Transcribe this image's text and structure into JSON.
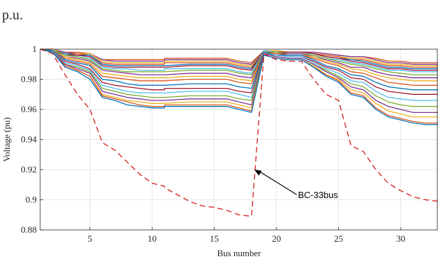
{
  "chart_data": {
    "type": "line",
    "top_text": "p.u.",
    "title": "",
    "xlabel": "Bus number",
    "ylabel": "Voltage (pu)",
    "xlim": [
      1,
      33
    ],
    "ylim": [
      0.88,
      1.0
    ],
    "xticks": [
      5,
      10,
      15,
      20,
      25,
      30
    ],
    "yticks": [
      0.88,
      0.9,
      0.92,
      0.94,
      0.96,
      0.98,
      1.0
    ],
    "ytick_labels": [
      "0.88",
      "0.9",
      "0.92",
      "0.94",
      "0.96",
      "0.98",
      "1"
    ],
    "grid": true,
    "annotation": {
      "text": "BC-33bus",
      "target": [
        18,
        0.92
      ]
    },
    "x": [
      1,
      2,
      3,
      4,
      5,
      6,
      7,
      8,
      9,
      10,
      11,
      11,
      13,
      14,
      15,
      16,
      17,
      18,
      19,
      20,
      21,
      22,
      23,
      24,
      25,
      26,
      27,
      28,
      29,
      30,
      31,
      32,
      33
    ],
    "series": [
      {
        "color": "#d62728",
        "dashed": true,
        "values": [
          1.0,
          0.997,
          0.983,
          0.97,
          0.96,
          0.938,
          0.933,
          0.925,
          0.917,
          0.911,
          0.909,
          0.908,
          0.899,
          0.896,
          0.895,
          0.893,
          0.89,
          0.889,
          0.997,
          0.993,
          0.992,
          0.992,
          0.98,
          0.97,
          0.966,
          0.936,
          0.932,
          0.92,
          0.911,
          0.906,
          0.902,
          0.9,
          0.899
        ]
      },
      {
        "color": "#0072bd",
        "values": [
          1.0,
          0.998,
          0.988,
          0.985,
          0.98,
          0.968,
          0.966,
          0.963,
          0.962,
          0.961,
          0.961,
          0.962,
          0.962,
          0.962,
          0.962,
          0.962,
          0.96,
          0.958,
          0.996,
          0.994,
          0.993,
          0.993,
          0.988,
          0.982,
          0.978,
          0.97,
          0.968,
          0.96,
          0.955,
          0.953,
          0.951,
          0.95,
          0.95
        ]
      },
      {
        "color": "#d95319",
        "values": [
          1.0,
          0.998,
          0.989,
          0.986,
          0.982,
          0.969,
          0.967,
          0.965,
          0.963,
          0.962,
          0.962,
          0.963,
          0.963,
          0.963,
          0.963,
          0.963,
          0.961,
          0.959,
          0.996,
          0.994,
          0.993,
          0.993,
          0.988,
          0.983,
          0.979,
          0.971,
          0.969,
          0.961,
          0.956,
          0.954,
          0.952,
          0.951,
          0.951
        ]
      },
      {
        "color": "#edb120",
        "values": [
          1.0,
          0.998,
          0.989,
          0.986,
          0.982,
          0.97,
          0.968,
          0.966,
          0.965,
          0.964,
          0.964,
          0.964,
          0.965,
          0.965,
          0.965,
          0.965,
          0.963,
          0.961,
          0.996,
          0.994,
          0.993,
          0.993,
          0.989,
          0.983,
          0.98,
          0.973,
          0.971,
          0.964,
          0.959,
          0.957,
          0.955,
          0.955,
          0.955
        ]
      },
      {
        "color": "#7e2f8e",
        "values": [
          1.0,
          0.998,
          0.99,
          0.987,
          0.984,
          0.972,
          0.97,
          0.968,
          0.967,
          0.966,
          0.966,
          0.966,
          0.967,
          0.967,
          0.967,
          0.967,
          0.965,
          0.963,
          0.997,
          0.995,
          0.994,
          0.994,
          0.99,
          0.985,
          0.981,
          0.975,
          0.973,
          0.966,
          0.962,
          0.96,
          0.958,
          0.958,
          0.958
        ]
      },
      {
        "color": "#77ac30",
        "values": [
          1.0,
          0.998,
          0.99,
          0.988,
          0.985,
          0.974,
          0.972,
          0.97,
          0.969,
          0.968,
          0.968,
          0.968,
          0.969,
          0.969,
          0.969,
          0.969,
          0.967,
          0.966,
          0.997,
          0.995,
          0.994,
          0.994,
          0.99,
          0.986,
          0.982,
          0.977,
          0.975,
          0.969,
          0.965,
          0.963,
          0.962,
          0.962,
          0.962
        ]
      },
      {
        "color": "#4dbeee",
        "values": [
          1.0,
          0.998,
          0.991,
          0.989,
          0.986,
          0.976,
          0.974,
          0.972,
          0.971,
          0.971,
          0.971,
          0.971,
          0.972,
          0.972,
          0.972,
          0.972,
          0.97,
          0.968,
          0.997,
          0.996,
          0.995,
          0.995,
          0.991,
          0.987,
          0.984,
          0.979,
          0.978,
          0.972,
          0.968,
          0.967,
          0.966,
          0.966,
          0.966
        ]
      },
      {
        "color": "#a2142f",
        "values": [
          1.0,
          0.998,
          0.992,
          0.99,
          0.987,
          0.978,
          0.976,
          0.975,
          0.974,
          0.973,
          0.973,
          0.974,
          0.974,
          0.974,
          0.974,
          0.974,
          0.972,
          0.971,
          0.997,
          0.996,
          0.995,
          0.995,
          0.992,
          0.988,
          0.986,
          0.981,
          0.98,
          0.975,
          0.972,
          0.971,
          0.97,
          0.97,
          0.97
        ]
      },
      {
        "color": "#0072bd",
        "values": [
          1.0,
          0.999,
          0.993,
          0.991,
          0.989,
          0.98,
          0.979,
          0.977,
          0.976,
          0.976,
          0.976,
          0.976,
          0.977,
          0.977,
          0.977,
          0.977,
          0.975,
          0.974,
          0.998,
          0.996,
          0.996,
          0.996,
          0.993,
          0.989,
          0.987,
          0.983,
          0.982,
          0.978,
          0.975,
          0.974,
          0.973,
          0.973,
          0.973
        ]
      },
      {
        "color": "#d95319",
        "values": [
          1.0,
          0.999,
          0.994,
          0.992,
          0.99,
          0.982,
          0.981,
          0.98,
          0.979,
          0.979,
          0.979,
          0.979,
          0.98,
          0.98,
          0.98,
          0.98,
          0.978,
          0.977,
          0.998,
          0.997,
          0.996,
          0.996,
          0.994,
          0.991,
          0.989,
          0.985,
          0.984,
          0.981,
          0.978,
          0.977,
          0.976,
          0.976,
          0.976
        ]
      },
      {
        "color": "#edb120",
        "values": [
          1.0,
          0.999,
          0.995,
          0.993,
          0.991,
          0.984,
          0.983,
          0.982,
          0.981,
          0.981,
          0.981,
          0.981,
          0.982,
          0.982,
          0.982,
          0.982,
          0.98,
          0.979,
          0.998,
          0.997,
          0.996,
          0.996,
          0.995,
          0.992,
          0.99,
          0.987,
          0.986,
          0.983,
          0.981,
          0.98,
          0.979,
          0.979,
          0.979
        ]
      },
      {
        "color": "#7e2f8e",
        "values": [
          1.0,
          0.999,
          0.995,
          0.994,
          0.992,
          0.986,
          0.985,
          0.984,
          0.983,
          0.983,
          0.983,
          0.983,
          0.984,
          0.984,
          0.984,
          0.984,
          0.982,
          0.981,
          0.998,
          0.997,
          0.997,
          0.997,
          0.995,
          0.993,
          0.991,
          0.988,
          0.988,
          0.985,
          0.983,
          0.982,
          0.981,
          0.981,
          0.981
        ]
      },
      {
        "color": "#77ac30",
        "values": [
          1.0,
          0.999,
          0.996,
          0.995,
          0.993,
          0.987,
          0.986,
          0.985,
          0.985,
          0.985,
          0.985,
          0.985,
          0.986,
          0.986,
          0.986,
          0.986,
          0.984,
          0.983,
          0.998,
          0.998,
          0.997,
          0.997,
          0.996,
          0.994,
          0.992,
          0.99,
          0.989,
          0.987,
          0.985,
          0.984,
          0.983,
          0.983,
          0.983
        ]
      },
      {
        "color": "#4dbeee",
        "values": [
          1.0,
          0.999,
          0.996,
          0.995,
          0.994,
          0.988,
          0.987,
          0.987,
          0.986,
          0.986,
          0.986,
          0.987,
          0.987,
          0.987,
          0.987,
          0.987,
          0.985,
          0.984,
          0.999,
          0.998,
          0.997,
          0.997,
          0.996,
          0.994,
          0.993,
          0.991,
          0.99,
          0.988,
          0.986,
          0.986,
          0.985,
          0.985,
          0.985
        ]
      },
      {
        "color": "#a2142f",
        "values": [
          1.0,
          0.999,
          0.996,
          0.996,
          0.995,
          0.989,
          0.988,
          0.988,
          0.988,
          0.988,
          0.988,
          0.988,
          0.989,
          0.989,
          0.989,
          0.989,
          0.987,
          0.986,
          0.999,
          0.998,
          0.998,
          0.998,
          0.997,
          0.995,
          0.994,
          0.992,
          0.991,
          0.989,
          0.987,
          0.987,
          0.986,
          0.986,
          0.986
        ]
      },
      {
        "color": "#0072bd",
        "values": [
          1.0,
          0.999,
          0.997,
          0.996,
          0.996,
          0.99,
          0.989,
          0.989,
          0.989,
          0.989,
          0.989,
          0.989,
          0.99,
          0.99,
          0.99,
          0.99,
          0.988,
          0.987,
          0.999,
          0.998,
          0.998,
          0.998,
          0.997,
          0.995,
          0.994,
          0.993,
          0.992,
          0.99,
          0.988,
          0.988,
          0.987,
          0.987,
          0.987
        ]
      },
      {
        "color": "#d95319",
        "values": [
          1.0,
          0.999,
          0.997,
          0.997,
          0.996,
          0.991,
          0.99,
          0.99,
          0.99,
          0.99,
          0.99,
          0.991,
          0.991,
          0.991,
          0.991,
          0.991,
          0.989,
          0.988,
          0.999,
          0.998,
          0.998,
          0.998,
          0.997,
          0.996,
          0.995,
          0.993,
          0.993,
          0.991,
          0.989,
          0.989,
          0.988,
          0.988,
          0.988
        ]
      },
      {
        "color": "#edb120",
        "values": [
          1.0,
          1.0,
          0.997,
          0.997,
          0.997,
          0.992,
          0.991,
          0.991,
          0.991,
          0.991,
          0.991,
          0.992,
          0.992,
          0.992,
          0.992,
          0.992,
          0.99,
          0.989,
          0.999,
          0.999,
          0.998,
          0.998,
          0.997,
          0.996,
          0.995,
          0.994,
          0.994,
          0.992,
          0.99,
          0.99,
          0.989,
          0.989,
          0.989
        ]
      },
      {
        "color": "#7e2f8e",
        "values": [
          1.0,
          1.0,
          0.998,
          0.997,
          0.997,
          0.993,
          0.992,
          0.992,
          0.992,
          0.992,
          0.992,
          0.993,
          0.993,
          0.993,
          0.993,
          0.993,
          0.991,
          0.99,
          0.999,
          0.999,
          0.998,
          0.998,
          0.998,
          0.997,
          0.996,
          0.995,
          0.995,
          0.993,
          0.991,
          0.991,
          0.99,
          0.99,
          0.99
        ]
      },
      {
        "color": "#d95319",
        "values": [
          1.0,
          1.0,
          0.998,
          0.998,
          0.997,
          0.993,
          0.993,
          0.993,
          0.993,
          0.993,
          0.993,
          0.994,
          0.994,
          0.994,
          0.994,
          0.994,
          0.992,
          0.991,
          0.999,
          0.999,
          0.998,
          0.998,
          0.998,
          0.997,
          0.996,
          0.995,
          0.995,
          0.994,
          0.992,
          0.992,
          0.991,
          0.991,
          0.991
        ]
      }
    ]
  }
}
